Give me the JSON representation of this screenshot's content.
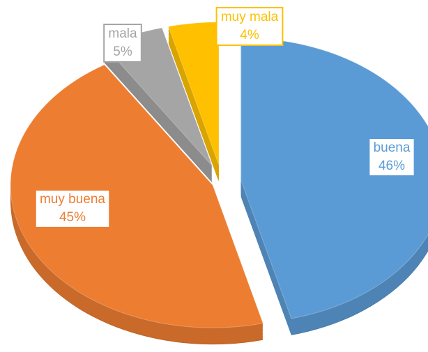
{
  "chart_data": {
    "type": "pie",
    "categories": [
      "buena",
      "muy buena",
      "mala",
      "muy mala"
    ],
    "values": [
      46,
      45,
      5,
      4
    ],
    "value_labels": [
      "46%",
      "45%",
      "5%",
      "4%"
    ],
    "colors": [
      "#5b9bd5",
      "#ed7d31",
      "#a5a5a5",
      "#ffc000"
    ]
  }
}
